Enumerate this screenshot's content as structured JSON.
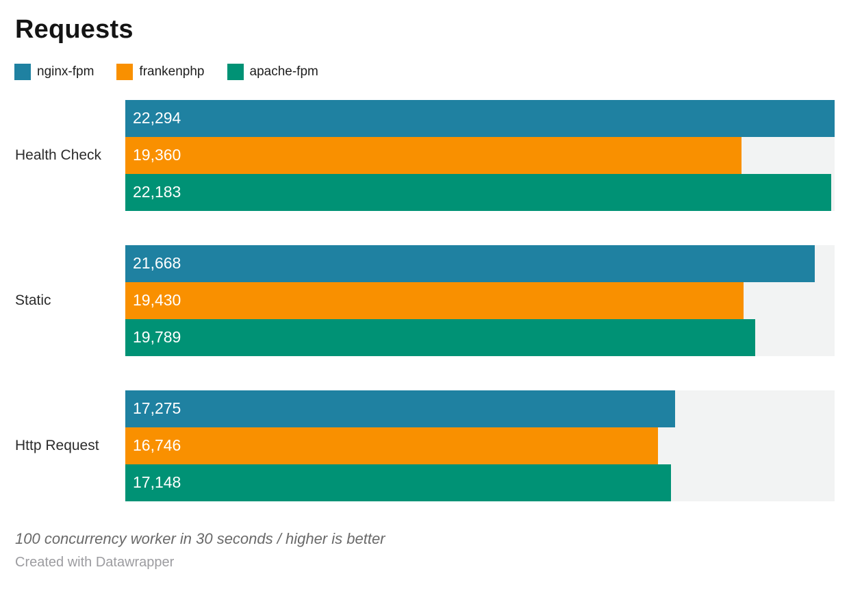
{
  "title": "Requests",
  "chart_data": {
    "type": "bar",
    "orientation": "horizontal",
    "title": "Requests",
    "categories": [
      "Health Check",
      "Static",
      "Http Request"
    ],
    "series": [
      {
        "name": "nginx-fpm",
        "color": "#1f81a1",
        "values": [
          22294,
          21668,
          17275
        ]
      },
      {
        "name": "frankenphp",
        "color": "#f99000",
        "values": [
          19360,
          19430,
          16746
        ]
      },
      {
        "name": "apache-fpm",
        "color": "#009275",
        "values": [
          22183,
          19789,
          17148
        ]
      }
    ],
    "xlim": [
      0,
      22294
    ],
    "grid": false,
    "legend_position": "top",
    "value_labels": "inside-bar-start",
    "track_color": "#f2f3f3"
  },
  "footer": {
    "note": "100 concurrency worker in 30 seconds / higher is better",
    "credit": "Created with Datawrapper"
  }
}
